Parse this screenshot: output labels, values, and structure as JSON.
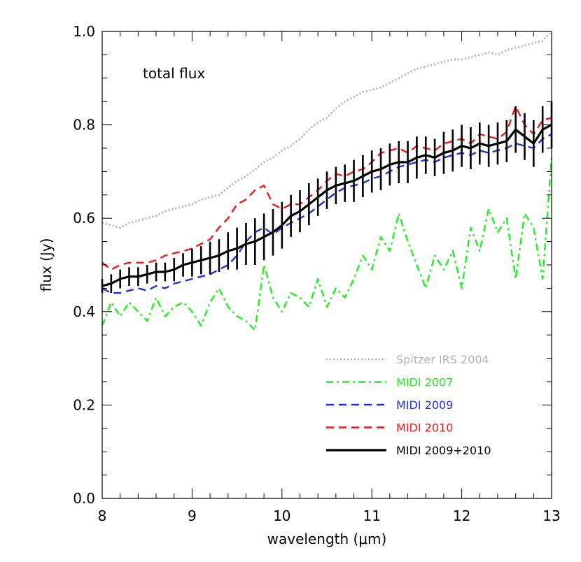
{
  "chart_data": {
    "type": "line",
    "annotation": "total flux",
    "xlabel": "wavelength (μm)",
    "ylabel": "flux (Jy)",
    "xlim": [
      8,
      13
    ],
    "ylim": [
      0,
      1.0
    ],
    "xticks": [
      "8",
      "9",
      "10",
      "11",
      "12",
      "13"
    ],
    "yticks": [
      "0.0",
      "0.2",
      "0.4",
      "0.6",
      "0.8",
      "1.0"
    ],
    "legend_position": "bottom-right",
    "grid": false,
    "series": [
      {
        "name": "Spitzer IRS 2004",
        "color": "#b3b3b3",
        "style": "dotted",
        "x": [
          8.0,
          8.1,
          8.2,
          8.3,
          8.4,
          8.5,
          8.6,
          8.7,
          8.8,
          8.9,
          9.0,
          9.1,
          9.2,
          9.3,
          9.4,
          9.5,
          9.6,
          9.7,
          9.8,
          9.9,
          10.0,
          10.1,
          10.2,
          10.3,
          10.4,
          10.5,
          10.6,
          10.7,
          10.8,
          10.9,
          11.0,
          11.1,
          11.2,
          11.3,
          11.4,
          11.5,
          11.6,
          11.7,
          11.8,
          11.9,
          12.0,
          12.1,
          12.2,
          12.3,
          12.4,
          12.5,
          12.6,
          12.7,
          12.8,
          12.9,
          13.0
        ],
        "y": [
          0.59,
          0.585,
          0.58,
          0.59,
          0.595,
          0.6,
          0.605,
          0.615,
          0.62,
          0.625,
          0.63,
          0.64,
          0.645,
          0.65,
          0.665,
          0.68,
          0.69,
          0.705,
          0.72,
          0.73,
          0.745,
          0.755,
          0.77,
          0.79,
          0.805,
          0.815,
          0.835,
          0.85,
          0.86,
          0.87,
          0.875,
          0.88,
          0.89,
          0.9,
          0.91,
          0.92,
          0.925,
          0.93,
          0.935,
          0.94,
          0.94,
          0.945,
          0.95,
          0.955,
          0.95,
          0.96,
          0.965,
          0.97,
          0.975,
          0.98,
          1.0
        ]
      },
      {
        "name": "MIDI 2007",
        "color": "#22ee22",
        "style": "dashdot",
        "x": [
          8.0,
          8.1,
          8.2,
          8.3,
          8.4,
          8.5,
          8.6,
          8.7,
          8.8,
          8.9,
          9.0,
          9.1,
          9.2,
          9.3,
          9.4,
          9.5,
          9.6,
          9.7,
          9.8,
          9.9,
          10.0,
          10.1,
          10.2,
          10.3,
          10.4,
          10.5,
          10.6,
          10.7,
          10.8,
          10.9,
          11.0,
          11.1,
          11.2,
          11.3,
          11.4,
          11.5,
          11.6,
          11.7,
          11.8,
          11.9,
          12.0,
          12.1,
          12.2,
          12.3,
          12.4,
          12.5,
          12.6,
          12.7,
          12.8,
          12.9,
          13.0
        ],
        "y": [
          0.37,
          0.42,
          0.39,
          0.42,
          0.4,
          0.38,
          0.43,
          0.39,
          0.41,
          0.42,
          0.4,
          0.37,
          0.42,
          0.45,
          0.41,
          0.39,
          0.38,
          0.36,
          0.5,
          0.43,
          0.4,
          0.44,
          0.43,
          0.41,
          0.47,
          0.41,
          0.45,
          0.43,
          0.47,
          0.52,
          0.49,
          0.56,
          0.53,
          0.61,
          0.55,
          0.5,
          0.45,
          0.52,
          0.49,
          0.53,
          0.45,
          0.58,
          0.53,
          0.62,
          0.57,
          0.6,
          0.47,
          0.61,
          0.58,
          0.47,
          0.73
        ]
      },
      {
        "name": "MIDI 2009",
        "color": "#1a33dd",
        "style": "dashed",
        "x": [
          8.0,
          8.1,
          8.2,
          8.3,
          8.4,
          8.5,
          8.6,
          8.7,
          8.8,
          8.9,
          9.0,
          9.1,
          9.2,
          9.3,
          9.4,
          9.5,
          9.6,
          9.7,
          9.8,
          9.9,
          10.0,
          10.1,
          10.2,
          10.3,
          10.4,
          10.5,
          10.6,
          10.7,
          10.8,
          10.9,
          11.0,
          11.1,
          11.2,
          11.3,
          11.4,
          11.5,
          11.6,
          11.7,
          11.8,
          11.9,
          12.0,
          12.1,
          12.2,
          12.3,
          12.4,
          12.5,
          12.6,
          12.7,
          12.8,
          12.9,
          13.0
        ],
        "y": [
          0.45,
          0.44,
          0.44,
          0.445,
          0.45,
          0.445,
          0.455,
          0.45,
          0.46,
          0.465,
          0.47,
          0.475,
          0.48,
          0.49,
          0.5,
          0.52,
          0.55,
          0.57,
          0.58,
          0.565,
          0.58,
          0.59,
          0.6,
          0.61,
          0.625,
          0.64,
          0.655,
          0.665,
          0.67,
          0.675,
          0.685,
          0.69,
          0.7,
          0.71,
          0.715,
          0.72,
          0.725,
          0.72,
          0.73,
          0.735,
          0.74,
          0.735,
          0.745,
          0.74,
          0.745,
          0.75,
          0.76,
          0.755,
          0.75,
          0.77,
          0.78
        ]
      },
      {
        "name": "MIDI 2010",
        "color": "#ee1a1a",
        "style": "dashed",
        "x": [
          8.0,
          8.1,
          8.2,
          8.3,
          8.4,
          8.5,
          8.6,
          8.7,
          8.8,
          8.9,
          9.0,
          9.1,
          9.2,
          9.3,
          9.4,
          9.5,
          9.6,
          9.7,
          9.8,
          9.9,
          10.0,
          10.1,
          10.2,
          10.3,
          10.4,
          10.5,
          10.6,
          10.7,
          10.8,
          10.9,
          11.0,
          11.1,
          11.2,
          11.3,
          11.4,
          11.5,
          11.6,
          11.7,
          11.8,
          11.9,
          12.0,
          12.1,
          12.2,
          12.3,
          12.4,
          12.5,
          12.6,
          12.7,
          12.8,
          12.9,
          13.0
        ],
        "y": [
          0.505,
          0.49,
          0.5,
          0.505,
          0.505,
          0.505,
          0.51,
          0.52,
          0.525,
          0.53,
          0.535,
          0.545,
          0.555,
          0.58,
          0.6,
          0.63,
          0.64,
          0.66,
          0.67,
          0.63,
          0.62,
          0.63,
          0.63,
          0.645,
          0.66,
          0.68,
          0.695,
          0.69,
          0.7,
          0.705,
          0.72,
          0.74,
          0.745,
          0.75,
          0.74,
          0.755,
          0.75,
          0.745,
          0.76,
          0.765,
          0.77,
          0.76,
          0.78,
          0.775,
          0.77,
          0.785,
          0.84,
          0.8,
          0.78,
          0.81,
          0.815
        ]
      },
      {
        "name": "MIDI 2009+2010",
        "color": "#000000",
        "style": "solid",
        "x": [
          8.0,
          8.1,
          8.2,
          8.3,
          8.4,
          8.5,
          8.6,
          8.7,
          8.8,
          8.9,
          9.0,
          9.1,
          9.2,
          9.3,
          9.4,
          9.5,
          9.6,
          9.7,
          9.8,
          9.9,
          10.0,
          10.1,
          10.2,
          10.3,
          10.4,
          10.5,
          10.6,
          10.7,
          10.8,
          10.9,
          11.0,
          11.1,
          11.2,
          11.3,
          11.4,
          11.5,
          11.6,
          11.7,
          11.8,
          11.9,
          12.0,
          12.1,
          12.2,
          12.3,
          12.4,
          12.5,
          12.6,
          12.7,
          12.8,
          12.9,
          13.0
        ],
        "y": [
          0.455,
          0.46,
          0.47,
          0.475,
          0.475,
          0.48,
          0.485,
          0.485,
          0.49,
          0.5,
          0.505,
          0.51,
          0.515,
          0.52,
          0.53,
          0.535,
          0.545,
          0.55,
          0.56,
          0.57,
          0.585,
          0.605,
          0.615,
          0.63,
          0.645,
          0.66,
          0.67,
          0.675,
          0.68,
          0.69,
          0.7,
          0.705,
          0.715,
          0.72,
          0.72,
          0.73,
          0.735,
          0.73,
          0.74,
          0.745,
          0.755,
          0.75,
          0.76,
          0.755,
          0.76,
          0.765,
          0.79,
          0.775,
          0.76,
          0.79,
          0.8
        ],
        "error": [
          0.015,
          0.02,
          0.02,
          0.02,
          0.02,
          0.02,
          0.02,
          0.02,
          0.025,
          0.025,
          0.03,
          0.03,
          0.035,
          0.035,
          0.04,
          0.045,
          0.045,
          0.05,
          0.05,
          0.05,
          0.05,
          0.045,
          0.045,
          0.045,
          0.04,
          0.04,
          0.04,
          0.04,
          0.045,
          0.045,
          0.045,
          0.045,
          0.045,
          0.045,
          0.045,
          0.045,
          0.04,
          0.04,
          0.045,
          0.045,
          0.045,
          0.045,
          0.045,
          0.045,
          0.045,
          0.045,
          0.05,
          0.05,
          0.05,
          0.05,
          0.05
        ]
      }
    ]
  }
}
